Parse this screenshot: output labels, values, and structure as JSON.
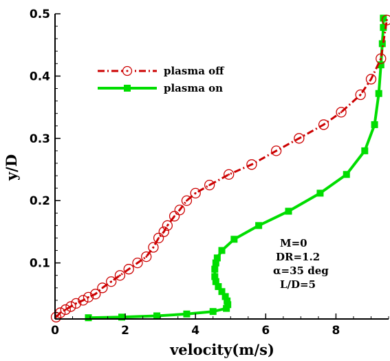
{
  "chart_data": {
    "type": "line",
    "xlabel": "velocity(m/s)",
    "ylabel": "y/D",
    "xlim": [
      0,
      9.5
    ],
    "ylim": [
      0.01,
      0.5
    ],
    "x_ticks": [
      "0",
      "2",
      "4",
      "6",
      "8"
    ],
    "y_ticks": [
      "0.1",
      "0.2",
      "0.3",
      "0.4",
      "0.5"
    ],
    "x_minor_step": 0.5,
    "y_minor_step": 0.02,
    "grid": false,
    "legend_position": "upper-left",
    "series": [
      {
        "name": "plasma off",
        "color": "#cc0000",
        "line_style": "dash-dot",
        "marker": "open-circle-dot",
        "x": [
          0.03,
          0.15,
          0.3,
          0.45,
          0.6,
          0.8,
          0.95,
          1.15,
          1.35,
          1.6,
          1.85,
          2.1,
          2.35,
          2.6,
          2.8,
          2.95,
          3.1,
          3.2,
          3.4,
          3.55,
          3.75,
          4.0,
          4.4,
          4.95,
          5.6,
          6.3,
          6.95,
          7.65,
          8.15,
          8.7,
          9.0,
          9.28,
          9.45
        ],
        "y": [
          0.013,
          0.02,
          0.025,
          0.03,
          0.035,
          0.04,
          0.045,
          0.05,
          0.06,
          0.07,
          0.08,
          0.09,
          0.1,
          0.11,
          0.125,
          0.14,
          0.15,
          0.16,
          0.175,
          0.185,
          0.2,
          0.212,
          0.225,
          0.242,
          0.258,
          0.28,
          0.3,
          0.322,
          0.342,
          0.37,
          0.395,
          0.428,
          0.49
        ]
      },
      {
        "name": "plasma on",
        "color": "#00dd00",
        "line_style": "solid",
        "marker": "filled-square",
        "x": [
          0.95,
          1.9,
          2.9,
          3.75,
          4.5,
          4.88,
          4.92,
          4.9,
          4.85,
          4.75,
          4.65,
          4.58,
          4.55,
          4.55,
          4.58,
          4.62,
          4.75,
          5.1,
          5.8,
          6.65,
          7.55,
          8.3,
          8.82,
          9.1,
          9.22,
          9.28,
          9.32,
          9.35,
          9.35
        ],
        "y": [
          0.012,
          0.013,
          0.015,
          0.018,
          0.022,
          0.027,
          0.033,
          0.039,
          0.046,
          0.054,
          0.062,
          0.07,
          0.078,
          0.09,
          0.1,
          0.108,
          0.12,
          0.138,
          0.16,
          0.183,
          0.212,
          0.242,
          0.28,
          0.322,
          0.372,
          0.418,
          0.452,
          0.478,
          0.493
        ]
      }
    ],
    "annotations": [
      "M=0",
      "DR=1.2",
      "α=35 deg",
      "L/D=5"
    ]
  }
}
